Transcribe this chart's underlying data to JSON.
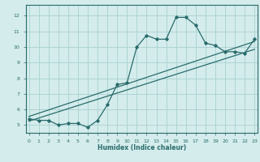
{
  "xlabel": "Humidex (Indice chaleur)",
  "ylabel": "",
  "bg_color": "#d4ecec",
  "grid_color": "#aed4d4",
  "line_color": "#2a6b6b",
  "x_ticks": [
    0,
    1,
    2,
    3,
    4,
    5,
    6,
    7,
    8,
    9,
    10,
    11,
    12,
    13,
    14,
    15,
    16,
    17,
    18,
    19,
    20,
    21,
    22,
    23
  ],
  "y_ticks": [
    5,
    6,
    7,
    8,
    9,
    10,
    11,
    12
  ],
  "xlim": [
    -0.3,
    23.3
  ],
  "ylim": [
    4.5,
    12.7
  ],
  "curve1_x": [
    0,
    1,
    2,
    3,
    4,
    5,
    6,
    7,
    8,
    9,
    10,
    11,
    12,
    13,
    14,
    15,
    16,
    17,
    18,
    19,
    20,
    21,
    22,
    23
  ],
  "curve1_y": [
    5.4,
    5.3,
    5.3,
    5.0,
    5.1,
    5.1,
    4.85,
    5.3,
    6.3,
    7.6,
    7.7,
    10.0,
    10.75,
    10.5,
    10.5,
    11.9,
    11.9,
    11.4,
    10.25,
    10.1,
    9.7,
    9.7,
    9.6,
    10.5
  ],
  "curve2_x": [
    0,
    23
  ],
  "curve2_y": [
    5.55,
    10.35
  ],
  "curve3_x": [
    0,
    23
  ],
  "curve3_y": [
    5.25,
    9.85
  ]
}
